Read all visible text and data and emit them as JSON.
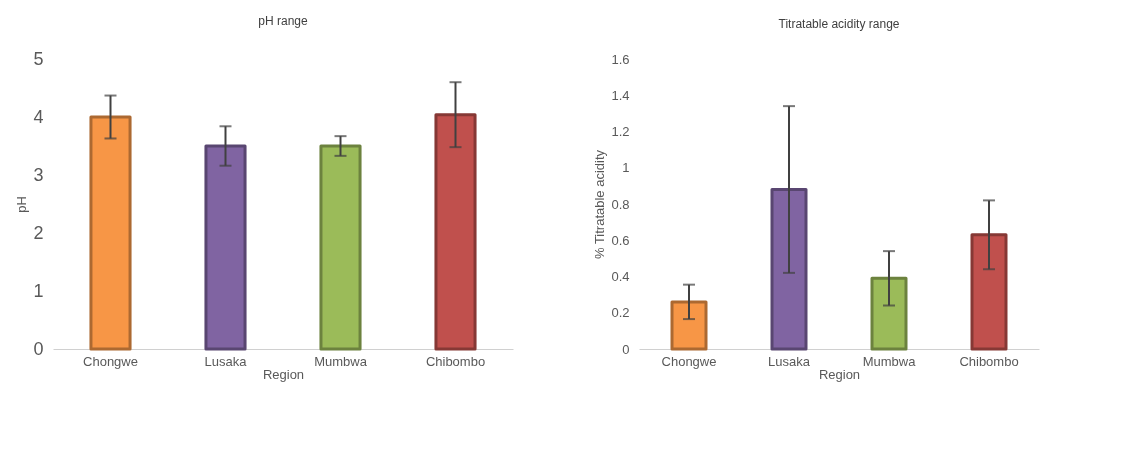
{
  "chart_data": [
    {
      "type": "bar",
      "title": "pH range",
      "xlabel": "Region",
      "ylabel": "pH",
      "categories": [
        "Chongwe",
        "Lusaka",
        "Mumbwa",
        "Chibombo"
      ],
      "values": [
        4.0,
        3.5,
        3.5,
        4.04
      ],
      "errors": [
        0.37,
        0.34,
        0.17,
        0.56
      ],
      "colors": [
        "#f79646",
        "#8064a2",
        "#9bbb59",
        "#c0504d"
      ],
      "ylim": [
        0,
        5
      ],
      "yticks": [
        0,
        1,
        2,
        3,
        4,
        5
      ],
      "grid": false
    },
    {
      "type": "bar",
      "title": "Titratable acidity range",
      "xlabel": "Region",
      "ylabel": "% Titratable acidity",
      "categories": [
        "Chongwe",
        "Lusaka",
        "Mumbwa",
        "Chibombo"
      ],
      "values": [
        0.26,
        0.88,
        0.39,
        0.63
      ],
      "errors": [
        0.095,
        0.46,
        0.15,
        0.19
      ],
      "colors": [
        "#f79646",
        "#8064a2",
        "#9bbb59",
        "#c0504d"
      ],
      "ylim": [
        0,
        1.6
      ],
      "yticks": [
        0,
        0.2,
        0.4,
        0.6,
        0.8,
        1,
        1.2,
        1.4,
        1.6
      ],
      "grid": false
    }
  ]
}
